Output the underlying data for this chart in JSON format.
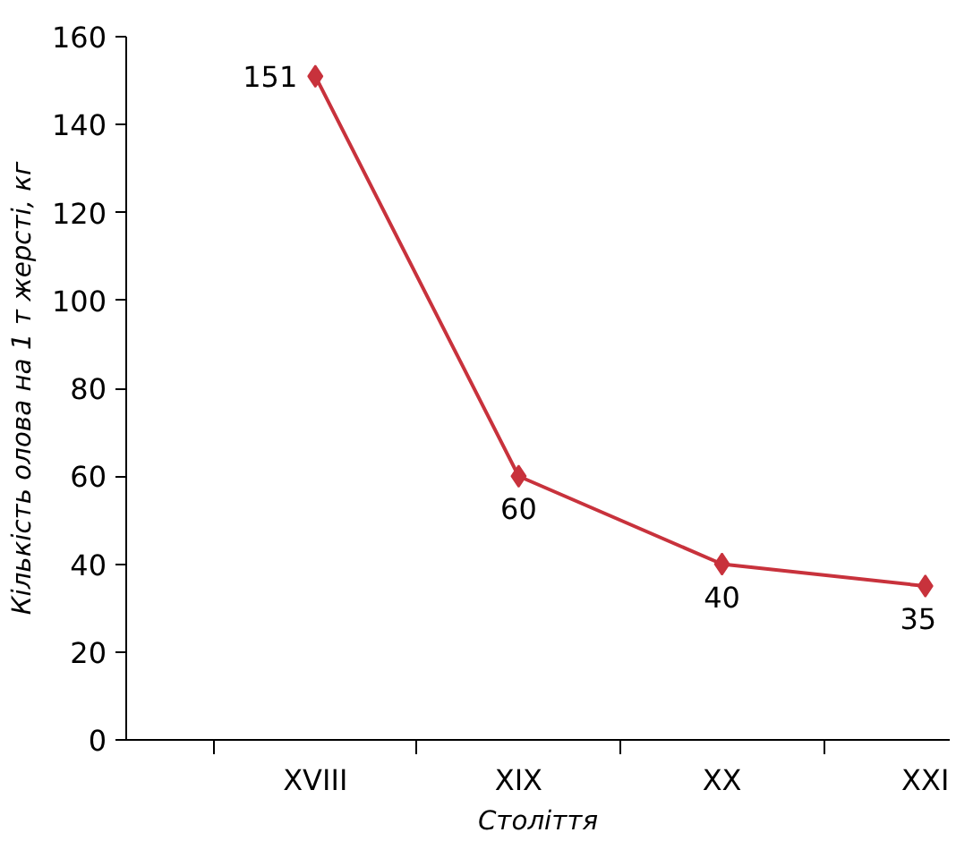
{
  "chart_data": {
    "type": "line",
    "xlabel": "Століття",
    "ylabel": "Кількість олова на 1 т жерсті, кг",
    "categories": [
      "XVIII",
      "XIX",
      "XX",
      "XXI"
    ],
    "series": [
      {
        "color": "#c8323c",
        "values": [
          151,
          60,
          40,
          35
        ]
      }
    ],
    "ylim": [
      0,
      160
    ],
    "yticks": [
      0,
      20,
      40,
      60,
      80,
      100,
      120,
      140,
      160
    ],
    "marker": "diamond",
    "line_style": "solid",
    "data_labels": true,
    "grid": false
  }
}
